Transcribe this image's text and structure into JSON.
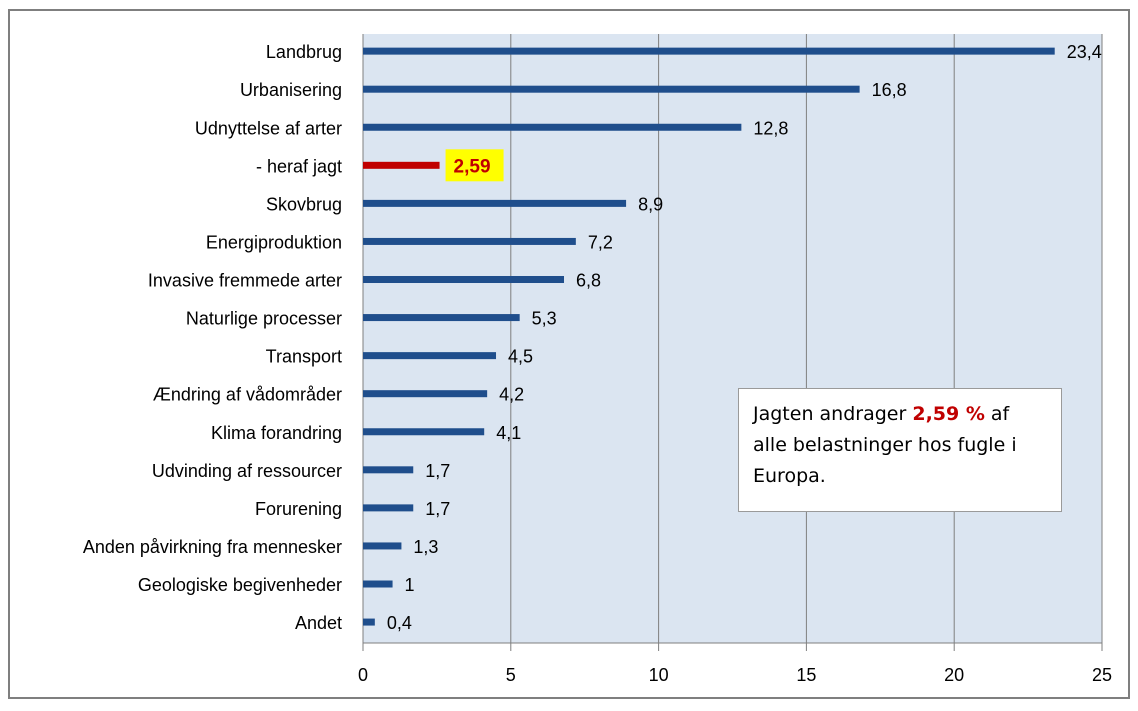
{
  "chart_data": {
    "type": "bar",
    "orientation": "horizontal",
    "categories": [
      "Landbrug",
      "Urbanisering",
      "Udnyttelse af arter",
      "- heraf jagt",
      "Skovbrug",
      "Energiproduktion",
      "Invasive fremmede arter",
      "Naturlige processer",
      "Transport",
      "Ændring af vådområder",
      "Klima forandring",
      "Udvinding af ressourcer",
      "Forurening",
      "Anden påvirkning fra mennesker",
      "Geologiske begivenheder",
      "Andet"
    ],
    "values": [
      23.4,
      16.8,
      12.8,
      2.59,
      8.9,
      7.2,
      6.8,
      5.3,
      4.5,
      4.2,
      4.1,
      1.7,
      1.7,
      1.3,
      1,
      0.4
    ],
    "data_labels": [
      "23,4",
      "16,8",
      "12,8",
      "2,59",
      "8,9",
      "7,2",
      "6,8",
      "5,3",
      "4,5",
      "4,2",
      "4,1",
      "1,7",
      "1,7",
      "1,3",
      "1",
      "0,4"
    ],
    "highlight_index": 3,
    "xlim": [
      0,
      25
    ],
    "xticks": [
      0,
      5,
      10,
      15,
      20,
      25
    ],
    "xtick_labels": [
      "0",
      "5",
      "10",
      "15",
      "20",
      "25"
    ],
    "grid": true,
    "title": "",
    "xlabel": "",
    "ylabel": "",
    "colors": {
      "bar": "#1f4e8c",
      "highlight": "#c00000",
      "highlight_label_bg": "#ffff00",
      "plot_bg": "#dbe5f1",
      "grid": "#7f7f7f"
    }
  },
  "annotation": {
    "prefix": "Jagten andrager ",
    "highlight": "2,59 %",
    "suffix": " af alle belastninger hos fugle i Europa."
  }
}
